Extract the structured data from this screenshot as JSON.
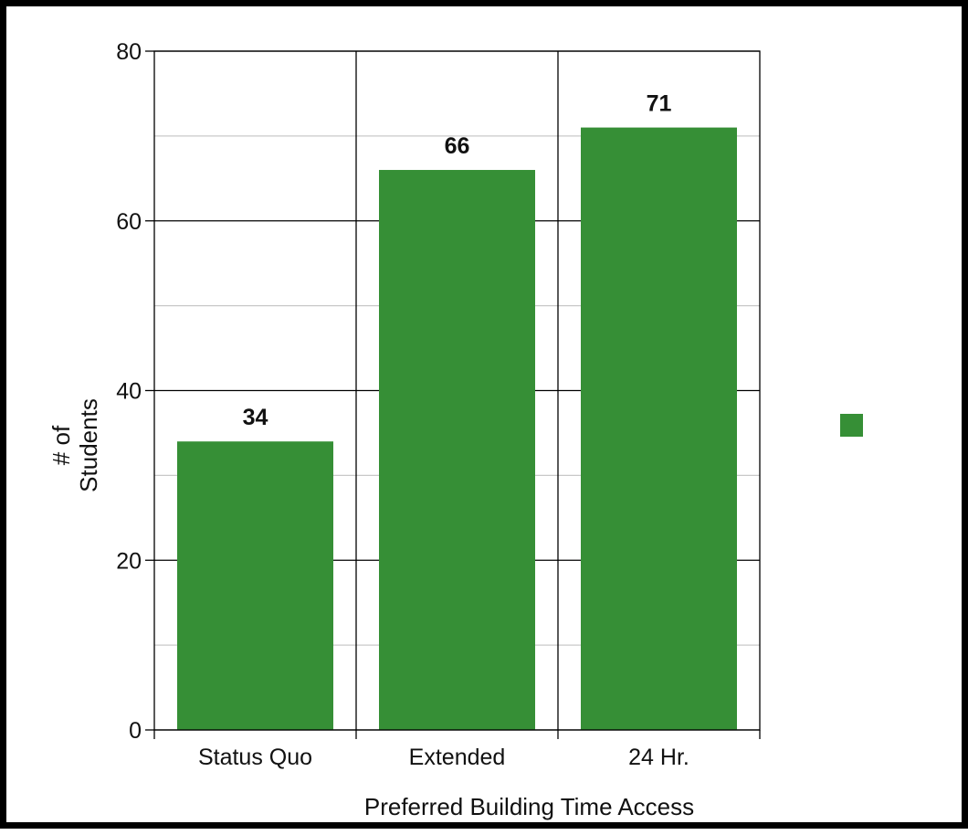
{
  "chart_data": {
    "type": "bar",
    "title": "",
    "xlabel": "Preferred Building Time Access",
    "ylabel_lines": [
      "# of",
      "Students"
    ],
    "categories": [
      "Status Quo",
      "Extended",
      "24 Hr."
    ],
    "values": [
      34,
      66,
      71
    ],
    "data_labels": [
      "34",
      "66",
      "71"
    ],
    "ylim": [
      0,
      80
    ],
    "yticks": [
      0,
      20,
      40,
      60,
      80
    ],
    "ytick_labels": [
      "0",
      "20",
      "40",
      "60",
      "80"
    ],
    "minor_grid": [
      10,
      30,
      50,
      70
    ],
    "grid": true,
    "legend": {
      "placement": "right",
      "entries": [
        ""
      ]
    },
    "colors": {
      "bar": "#368f36",
      "major_grid": "#000000",
      "minor_grid": "#c8c8c8",
      "border": "#000000"
    }
  }
}
